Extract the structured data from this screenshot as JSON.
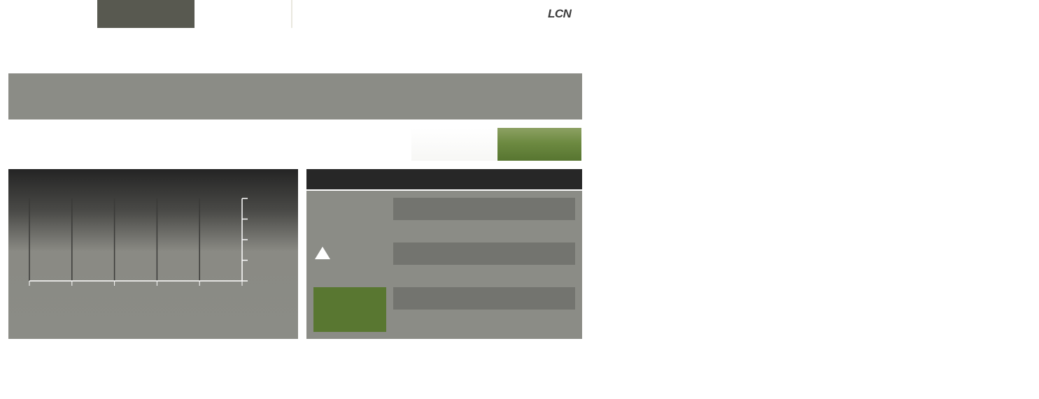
{
  "header": {
    "logo_text": "LCN",
    "tab_color": "#585950"
  },
  "banner": {
    "color": "#8b8c86"
  },
  "actions": {
    "primary_color": "#5a7832"
  },
  "chart_data": {
    "type": "bar",
    "x_ticks": 6,
    "y_ticks": 5,
    "grid": "vertical",
    "values": []
  },
  "side_panel": {
    "header_color": "#272727",
    "warning_icon": "warning-triangle-icon",
    "tile_color": "#597731",
    "fields": [
      "",
      "",
      ""
    ]
  }
}
